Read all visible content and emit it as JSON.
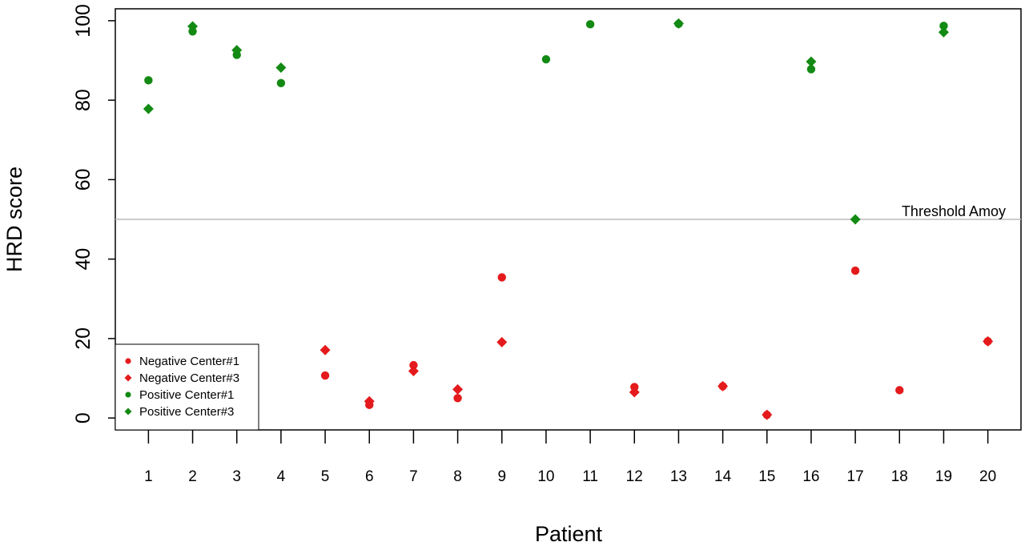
{
  "chart_data": {
    "type": "scatter",
    "xlabel": "Patient",
    "ylabel": "HRD score",
    "x_ticks": [
      1,
      2,
      3,
      4,
      5,
      6,
      7,
      8,
      9,
      10,
      11,
      12,
      13,
      14,
      15,
      16,
      17,
      18,
      19,
      20
    ],
    "y_ticks": [
      0,
      20,
      40,
      60,
      80,
      100
    ],
    "xlim": [
      0.25,
      20.75
    ],
    "ylim": [
      -3,
      103
    ],
    "grid": false,
    "legend_position": "bottom-left",
    "threshold": {
      "value": 50,
      "label": "Threshold Amoy",
      "color": "#bbbbbb"
    },
    "series": [
      {
        "name": "Negative Center#1",
        "marker": "circle",
        "color": "#e41a1c",
        "points": [
          [
            5,
            10.7
          ],
          [
            6,
            3.3
          ],
          [
            7,
            13.3
          ],
          [
            8,
            5.0
          ],
          [
            9,
            35.4
          ],
          [
            12,
            7.8
          ],
          [
            14,
            8.0
          ],
          [
            15,
            0.8
          ],
          [
            17,
            37.1
          ],
          [
            18,
            7.0
          ],
          [
            20,
            19.3
          ]
        ]
      },
      {
        "name": "Negative Center#3",
        "marker": "diamond",
        "color": "#e41a1c",
        "points": [
          [
            5,
            17.1
          ],
          [
            6,
            4.2
          ],
          [
            7,
            11.8
          ],
          [
            8,
            7.2
          ],
          [
            9,
            19.1
          ],
          [
            12,
            6.5
          ],
          [
            14,
            8.0
          ],
          [
            15,
            0.8
          ],
          [
            20,
            19.3
          ]
        ]
      },
      {
        "name": "Positive Center#1",
        "marker": "circle",
        "color": "#138a13",
        "points": [
          [
            1,
            85.0
          ],
          [
            2,
            97.3
          ],
          [
            3,
            91.4
          ],
          [
            4,
            84.3
          ],
          [
            10,
            90.3
          ],
          [
            11,
            99.1
          ],
          [
            13,
            99.2
          ],
          [
            16,
            87.8
          ],
          [
            19,
            98.7
          ]
        ]
      },
      {
        "name": "Positive Center#3",
        "marker": "diamond",
        "color": "#138a13",
        "points": [
          [
            1,
            77.8
          ],
          [
            2,
            98.6
          ],
          [
            3,
            92.6
          ],
          [
            4,
            88.2
          ],
          [
            13,
            99.3
          ],
          [
            16,
            89.7
          ],
          [
            17,
            50.0
          ],
          [
            19,
            97.1
          ]
        ]
      }
    ]
  }
}
